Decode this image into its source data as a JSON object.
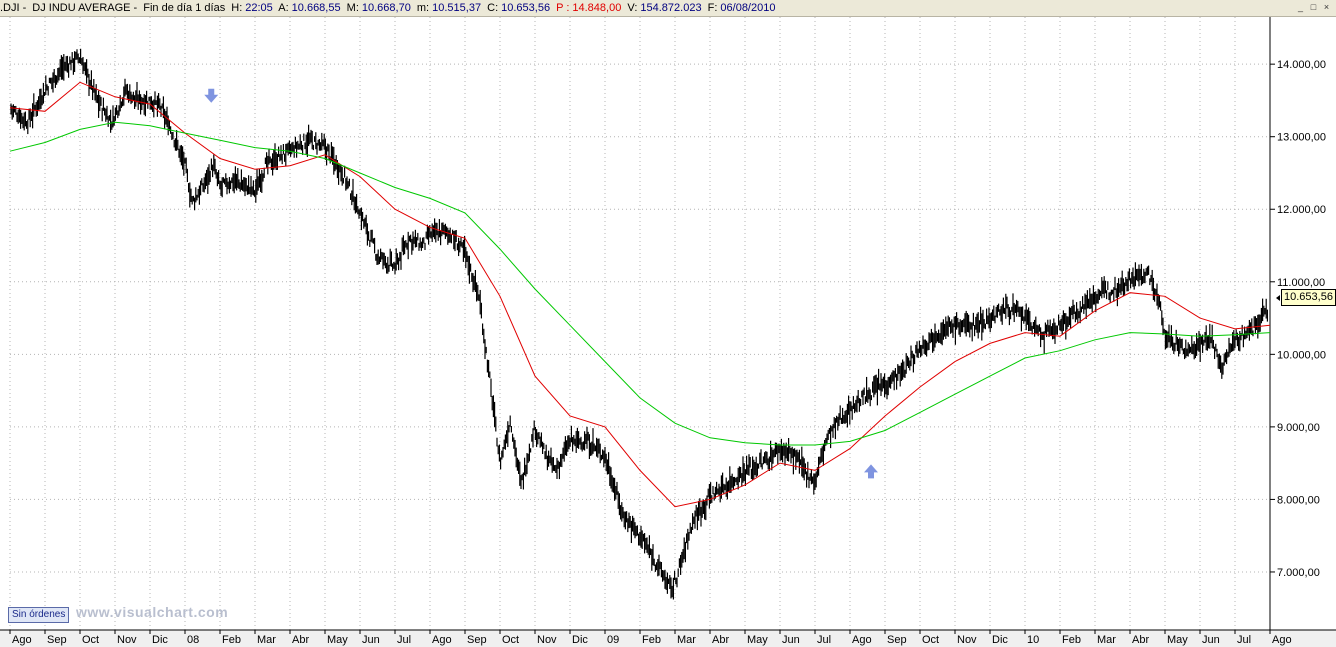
{
  "header": {
    "symbol": ".DJI",
    "name": "DJ INDU AVERAGE",
    "timeframe": "Fin de día 1 días",
    "time_label": "H:",
    "time": "22:05",
    "open_label": "A:",
    "open": "10.668,55",
    "high_label": "M:",
    "high": "10.668,70",
    "low_label": "m:",
    "low": "10.515,37",
    "close_label": "C:",
    "close": "10.653,56",
    "p_label": "P :",
    "p_value": "14.848,00",
    "volume_label": "V:",
    "volume": "154.872.023",
    "date_label": "F:",
    "date": "06/08/2010",
    "separator": "-"
  },
  "window_buttons": [
    "_",
    "□",
    "×"
  ],
  "footer": {
    "orders_button": "Sin órdenes",
    "watermark": "www.visualchart.com"
  },
  "last_price_label": "10.653,56",
  "colors": {
    "price": "#000000",
    "ma_short": "#e00000",
    "ma_long": "#00c800",
    "arrow": "#7f94e0",
    "grid": "#b4b4b4"
  },
  "chart_data": {
    "type": "line",
    "price_style": "ohlc-bars",
    "y_ticks": [
      "14.000,00",
      "13.000,00",
      "12.000,00",
      "11.000,00",
      "10.000,00",
      "9.000,00",
      "8.000,00",
      "7.000,00"
    ],
    "y_tick_values": [
      14000,
      13000,
      12000,
      11000,
      10000,
      9000,
      8000,
      7000
    ],
    "ylim": [
      6200,
      14650
    ],
    "x_labels": [
      "Ago",
      "Sep",
      "Oct",
      "Nov",
      "Dic",
      "08",
      "Feb",
      "Mar",
      "Abr",
      "May",
      "Jun",
      "Jul",
      "Ago",
      "Sep",
      "Oct",
      "Nov",
      "Dic",
      "09",
      "Feb",
      "Mar",
      "Abr",
      "May",
      "Jun",
      "Jul",
      "Ago",
      "Sep",
      "Oct",
      "Nov",
      "Dic",
      "10",
      "Feb",
      "Mar",
      "Abr",
      "May",
      "Jun",
      "Jul",
      "Ago"
    ],
    "x_label_months": [
      0,
      1,
      2,
      3,
      4,
      5,
      6,
      7,
      8,
      9,
      10,
      11,
      12,
      13,
      14,
      15,
      16,
      17,
      18,
      19,
      20,
      21,
      22,
      23,
      24,
      25,
      26,
      27,
      28,
      29,
      30,
      31,
      32,
      33,
      34,
      35,
      36
    ],
    "grid": true,
    "series": [
      {
        "name": "",
        "style": "price",
        "x": [
          0,
          0.5,
          1,
          1.5,
          2,
          2.5,
          2.9,
          3,
          3.3,
          3.6,
          4,
          4.3,
          4.6,
          5,
          5.2,
          5.5,
          5.8,
          6,
          6.4,
          7,
          7.3,
          7.6,
          8,
          8.5,
          9,
          9.5,
          10,
          10.5,
          11,
          11.4,
          11.8,
          12,
          12.5,
          13,
          13.4,
          13.8,
          14,
          14.3,
          14.6,
          15,
          15.3,
          15.6,
          16,
          16.5,
          17,
          17.5,
          18,
          18.5,
          18.9,
          19.1,
          19.5,
          20,
          20.5,
          21,
          21.5,
          22,
          22.4,
          22.7,
          23,
          23.3,
          23.7,
          24,
          24.5,
          25,
          25.5,
          26,
          26.5,
          27,
          27.5,
          28,
          28.5,
          29,
          29.5,
          30,
          30.5,
          31,
          31.5,
          32,
          32.5,
          32.8,
          33,
          33.3,
          33.6,
          34,
          34.3,
          34.6,
          35,
          35.5,
          35.8,
          36
        ],
        "values": [
          13400,
          13200,
          13650,
          13950,
          14100,
          13500,
          13200,
          13300,
          13650,
          13500,
          13500,
          13400,
          13100,
          12600,
          12100,
          12300,
          12600,
          12300,
          12400,
          12250,
          12600,
          12700,
          12800,
          12950,
          12850,
          12500,
          11950,
          11350,
          11200,
          11600,
          11500,
          11650,
          11700,
          11400,
          10800,
          9300,
          8500,
          9100,
          8200,
          9000,
          8600,
          8400,
          8800,
          8800,
          8600,
          7800,
          7500,
          7100,
          6750,
          7000,
          7700,
          8050,
          8200,
          8400,
          8500,
          8700,
          8600,
          8400,
          8250,
          8800,
          9100,
          9250,
          9450,
          9600,
          9750,
          10100,
          10300,
          10400,
          10400,
          10500,
          10650,
          10500,
          10250,
          10400,
          10600,
          10800,
          10900,
          11050,
          11100,
          10800,
          10250,
          10150,
          10050,
          10150,
          10250,
          9800,
          10200,
          10350,
          10550,
          10650
        ]
      },
      {
        "name": "",
        "style": "ma_short",
        "x": [
          0,
          1,
          2,
          3,
          4,
          5,
          6,
          7,
          8,
          9,
          10,
          11,
          12,
          13,
          14,
          15,
          16,
          17,
          18,
          19,
          20,
          21,
          22,
          23,
          24,
          25,
          26,
          27,
          28,
          29,
          30,
          31,
          32,
          33,
          34,
          35,
          36
        ],
        "values": [
          13400,
          13350,
          13750,
          13550,
          13450,
          13050,
          12700,
          12550,
          12600,
          12750,
          12450,
          12000,
          11750,
          11600,
          10800,
          9700,
          9150,
          9000,
          8400,
          7900,
          8000,
          8200,
          8500,
          8400,
          8700,
          9150,
          9550,
          9900,
          10150,
          10300,
          10250,
          10600,
          10850,
          10800,
          10500,
          10350,
          10400
        ]
      },
      {
        "name": "",
        "style": "ma_long",
        "x": [
          0,
          1,
          2,
          3,
          4,
          5,
          6,
          7,
          8,
          9,
          10,
          11,
          12,
          13,
          14,
          15,
          16,
          17,
          18,
          19,
          20,
          21,
          22,
          23,
          24,
          25,
          26,
          27,
          28,
          29,
          30,
          31,
          32,
          33,
          34,
          35,
          36
        ],
        "values": [
          12800,
          12920,
          13100,
          13200,
          13150,
          13050,
          12950,
          12850,
          12800,
          12700,
          12500,
          12300,
          12150,
          11950,
          11450,
          10900,
          10400,
          9900,
          9400,
          9050,
          8850,
          8780,
          8750,
          8750,
          8800,
          8950,
          9200,
          9450,
          9700,
          9950,
          10050,
          10200,
          10300,
          10280,
          10250,
          10270,
          10300
        ]
      }
    ],
    "annotations": [
      {
        "type": "arrow-down",
        "x": 5.75,
        "y": 13550
      },
      {
        "type": "arrow-up",
        "x": 24.6,
        "y": 8400
      }
    ]
  }
}
